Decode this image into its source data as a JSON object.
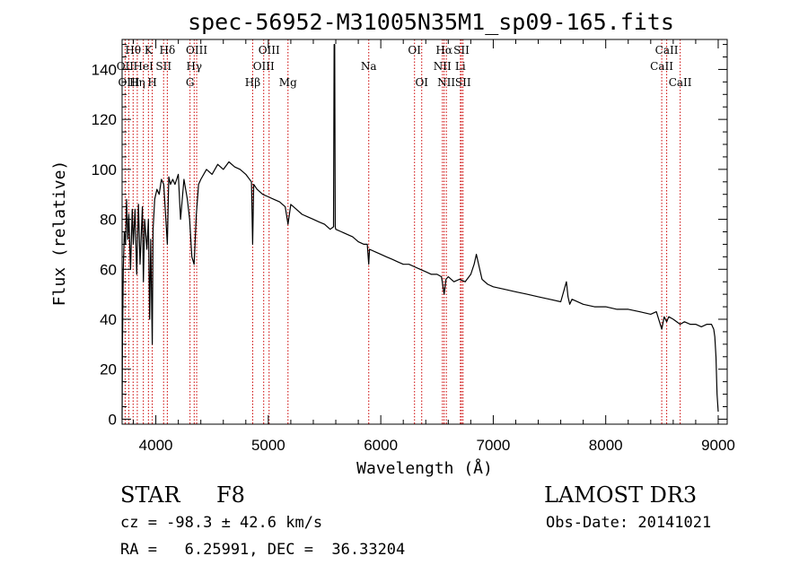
{
  "chart_data": {
    "type": "line",
    "title": "spec-56952-M31005N35M1_sp09-165.fits",
    "xlabel": "Wavelength (Å)",
    "ylabel": "Flux (relative)",
    "xlim": [
      3700,
      9080
    ],
    "ylim": [
      -2,
      152
    ],
    "xticks": [
      4000,
      5000,
      6000,
      7000,
      8000,
      9000
    ],
    "xtick_labels": [
      "4000",
      "5000",
      "6000",
      "7000",
      "8000",
      "9000"
    ],
    "yticks": [
      0,
      20,
      40,
      60,
      80,
      100,
      120,
      140
    ],
    "ytick_labels": [
      "0",
      "20",
      "40",
      "60",
      "80",
      "100",
      "120",
      "140"
    ],
    "grid": false,
    "series": [
      {
        "name": "flux",
        "color": "#000000",
        "x": [
          3700,
          3703,
          3710,
          3720,
          3730,
          3740,
          3750,
          3760,
          3775,
          3790,
          3800,
          3815,
          3830,
          3845,
          3860,
          3880,
          3889,
          3900,
          3920,
          3934,
          3945,
          3955,
          3968,
          3975,
          3990,
          4010,
          4030,
          4050,
          4070,
          4102,
          4115,
          4130,
          4150,
          4170,
          4200,
          4220,
          4250,
          4280,
          4300,
          4320,
          4340,
          4360,
          4380,
          4400,
          4450,
          4500,
          4550,
          4600,
          4650,
          4700,
          4750,
          4800,
          4850,
          4861,
          4870,
          4900,
          4950,
          5000,
          5050,
          5100,
          5150,
          5175,
          5200,
          5250,
          5300,
          5350,
          5400,
          5450,
          5500,
          5550,
          5580,
          5585,
          5590,
          5595,
          5600,
          5650,
          5700,
          5750,
          5800,
          5850,
          5880,
          5893,
          5900,
          5950,
          6000,
          6050,
          6100,
          6150,
          6200,
          6250,
          6300,
          6350,
          6400,
          6450,
          6500,
          6540,
          6563,
          6580,
          6600,
          6650,
          6700,
          6750,
          6800,
          6830,
          6850,
          6870,
          6900,
          6950,
          7000,
          7100,
          7200,
          7300,
          7400,
          7500,
          7600,
          7650,
          7665,
          7680,
          7700,
          7800,
          7900,
          8000,
          8100,
          8200,
          8300,
          8400,
          8450,
          8498,
          8520,
          8542,
          8560,
          8600,
          8662,
          8700,
          8750,
          8800,
          8850,
          8900,
          8940,
          8960,
          8970,
          8980,
          8990,
          9000
        ],
        "y": [
          0,
          30,
          60,
          75,
          70,
          88,
          72,
          82,
          60,
          84,
          70,
          84,
          58,
          86,
          62,
          85,
          55,
          80,
          68,
          80,
          40,
          72,
          30,
          76,
          88,
          92,
          90,
          96,
          94,
          70,
          97,
          94,
          96,
          94,
          98,
          80,
          96,
          88,
          80,
          65,
          62,
          82,
          94,
          96,
          100,
          98,
          102,
          100,
          103,
          101,
          100,
          98,
          95,
          70,
          94,
          92,
          90,
          89,
          88,
          87,
          85,
          78,
          86,
          84,
          82,
          81,
          80,
          79,
          78,
          76,
          77,
          150,
          150,
          77,
          76,
          75,
          74,
          73,
          71,
          70,
          70,
          62,
          68,
          67,
          66,
          65,
          64,
          63,
          62,
          62,
          61,
          60,
          59,
          58,
          58,
          57,
          50,
          56,
          57,
          55,
          56,
          55,
          58,
          62,
          66,
          62,
          56,
          54,
          53,
          52,
          51,
          50,
          49,
          48,
          47,
          55,
          49,
          46,
          48,
          46,
          45,
          45,
          44,
          44,
          43,
          42,
          43,
          36,
          41,
          39,
          41,
          40,
          38,
          39,
          38,
          38,
          37,
          38,
          38,
          36,
          33,
          25,
          10,
          3
        ]
      }
    ],
    "spectral_lines": [
      {
        "label": "Hθ",
        "wavelength": 3798,
        "row": 1
      },
      {
        "label": "OII",
        "wavelength": 3727,
        "row": 2
      },
      {
        "label": "OIII",
        "wavelength": 3760,
        "row": 3
      },
      {
        "label": "K",
        "wavelength": 3934,
        "row": 1
      },
      {
        "label": "HeI",
        "wavelength": 3889,
        "row": 2
      },
      {
        "label": "Hη",
        "wavelength": 3835,
        "row": 3
      },
      {
        "label": "SII",
        "wavelength": 4069,
        "row": 2
      },
      {
        "label": "H",
        "wavelength": 3968,
        "row": 3
      },
      {
        "label": "Hδ",
        "wavelength": 4102,
        "row": 1
      },
      {
        "label": "OIII",
        "wavelength": 4363,
        "row": 1
      },
      {
        "label": "Hγ",
        "wavelength": 4341,
        "row": 2
      },
      {
        "label": "G",
        "wavelength": 4304,
        "row": 3
      },
      {
        "label": "OIII",
        "wavelength": 5007,
        "row": 1
      },
      {
        "label": "OIII",
        "wavelength": 4959,
        "row": 2
      },
      {
        "label": "Hβ",
        "wavelength": 4861,
        "row": 3
      },
      {
        "label": "Mg",
        "wavelength": 5175,
        "row": 3
      },
      {
        "label": "Na",
        "wavelength": 5893,
        "row": 2
      },
      {
        "label": "OI",
        "wavelength": 6300,
        "row": 1
      },
      {
        "label": "OI",
        "wavelength": 6364,
        "row": 3
      },
      {
        "label": "Hα",
        "wavelength": 6563,
        "row": 1
      },
      {
        "label": "NII",
        "wavelength": 6548,
        "row": 2
      },
      {
        "label": "NII",
        "wavelength": 6583,
        "row": 3
      },
      {
        "label": "SII",
        "wavelength": 6717,
        "row": 1
      },
      {
        "label": "Li",
        "wavelength": 6708,
        "row": 2
      },
      {
        "label": "SII",
        "wavelength": 6731,
        "row": 3
      },
      {
        "label": "CaII",
        "wavelength": 8542,
        "row": 1
      },
      {
        "label": "CaII",
        "wavelength": 8498,
        "row": 2
      },
      {
        "label": "CaII",
        "wavelength": 8662,
        "row": 3
      }
    ],
    "line_color": "#cc0000"
  },
  "info": {
    "object_class": "STAR",
    "subclass": "F8",
    "survey": "LAMOST DR3",
    "redshift": "cz = -98.3 ± 42.6 km/s",
    "obs_date": "Obs-Date: 20141021",
    "coords": "RA =   6.25991, DEC =  36.33204"
  }
}
